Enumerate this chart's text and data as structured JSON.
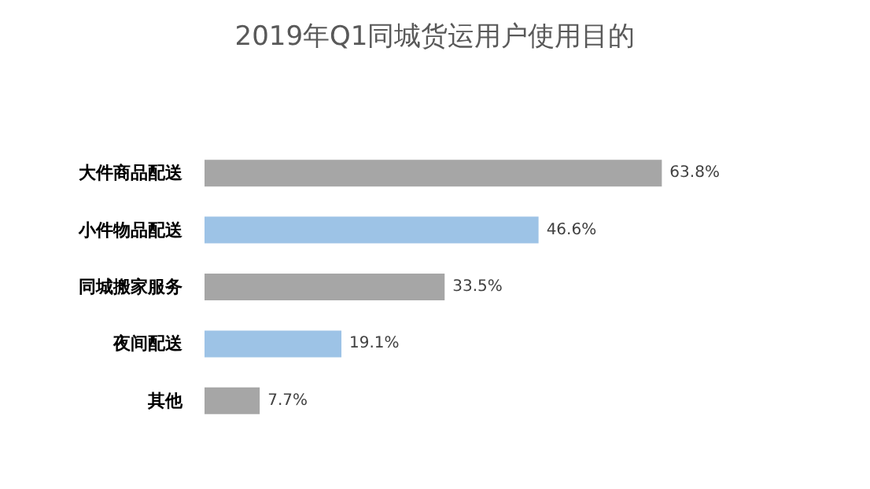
{
  "chart_data": {
    "type": "bar",
    "orientation": "horizontal",
    "title": "2019年Q1同城货运用户使用目的",
    "categories": [
      "大件商品配送",
      "小件物品配送",
      "同城搬家服务",
      "夜间配送",
      "其他"
    ],
    "values": [
      63.8,
      46.6,
      33.5,
      19.1,
      7.7
    ],
    "colors": [
      "#a6a6a6",
      "#9dc3e6",
      "#a6a6a6",
      "#9dc3e6",
      "#a6a6a6"
    ],
    "value_labels": [
      "63.8%",
      "46.6%",
      "33.5%",
      "19.1%",
      "7.7%"
    ]
  }
}
